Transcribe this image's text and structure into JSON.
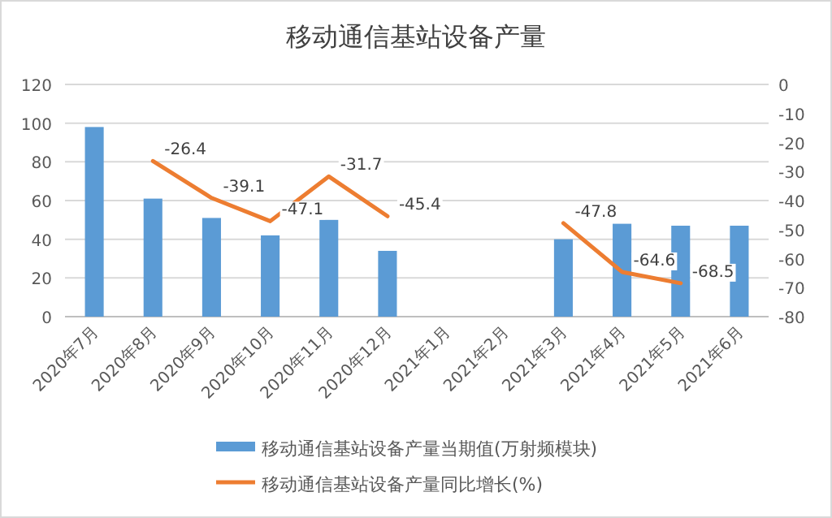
{
  "chart_data": {
    "type": "bar",
    "title": "移动通信基站设备产量",
    "categories": [
      "2020年7月",
      "2020年8月",
      "2020年9月",
      "2020年10月",
      "2020年11月",
      "2020年12月",
      "2021年1月",
      "2021年2月",
      "2021年3月",
      "2021年4月",
      "2021年5月",
      "2021年6月"
    ],
    "series": [
      {
        "name": "移动通信基站设备产量当期值(万射频模块)",
        "color": "#5b9bd5",
        "values": [
          98,
          61,
          51,
          42,
          50,
          34,
          null,
          null,
          40,
          48,
          47,
          47
        ]
      },
      {
        "name": "移动通信基站设备产量同比增长(%)",
        "type": "line",
        "axis": "y2",
        "color": "#ed7d31",
        "values": [
          null,
          -26.4,
          -39.1,
          -47.1,
          -31.7,
          -45.4,
          null,
          null,
          -47.8,
          -64.6,
          -68.5,
          null
        ],
        "value_labels": [
          null,
          "-26.4",
          "-39.1",
          "-47.1",
          "-31.7",
          "-45.4",
          null,
          null,
          "-47.8",
          "-64.6",
          "-68.5",
          null
        ]
      }
    ],
    "ylim": [
      0,
      120
    ],
    "yticks": [
      0,
      20,
      40,
      60,
      80,
      100,
      120
    ],
    "y2lim": [
      -80,
      0
    ],
    "y2ticks": [
      -80,
      -70,
      -60,
      -50,
      -40,
      -30,
      -20,
      -10,
      0
    ],
    "grid": "y",
    "legend": "bottom",
    "marker": "none",
    "line_style": "solid"
  }
}
